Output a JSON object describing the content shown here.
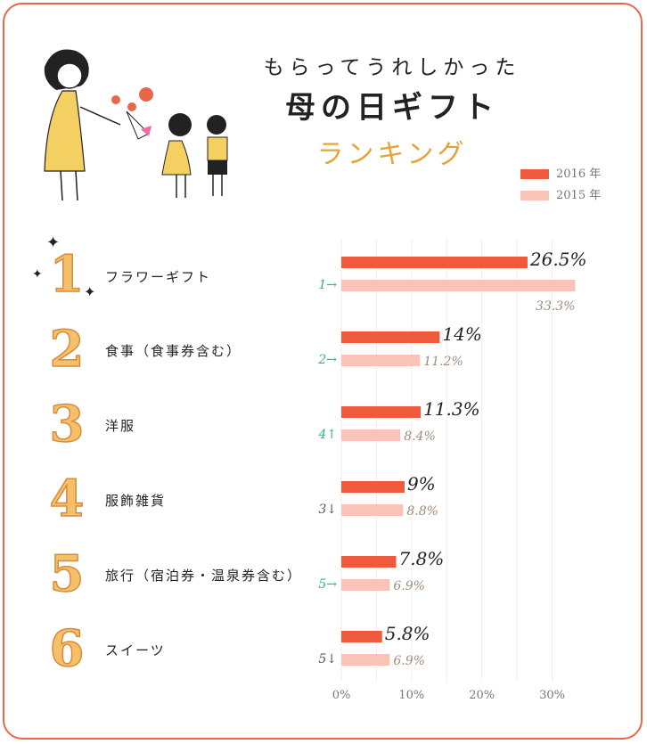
{
  "title_line1": "もらってうれしかった",
  "title_line2": "母の日ギフト",
  "title_line3": "ランキング",
  "colors": {
    "border": "#e9664b",
    "s2016": "#f05a3c",
    "s2015": "#f9c3b6",
    "accent": "#e8a23a",
    "rank_fill": "#f4c06a",
    "up": "#2ab58a"
  },
  "legend": [
    {
      "label": "2016 年",
      "color": "#f05a3c"
    },
    {
      "label": "2015 年",
      "color": "#f9c3b6"
    }
  ],
  "rows": [
    {
      "rank": "1",
      "label": "フラワーギフト",
      "change": "1→",
      "change_kind": "up",
      "v2016": "26.5%",
      "v2015": "33.3%"
    },
    {
      "rank": "2",
      "label": "食事（食事券含む）",
      "change": "2→",
      "change_kind": "up",
      "v2016": "14%",
      "v2015": "11.2%"
    },
    {
      "rank": "3",
      "label": "洋服",
      "change": "4↑",
      "change_kind": "up",
      "v2016": "11.3%",
      "v2015": "8.4%"
    },
    {
      "rank": "4",
      "label": "服飾雑貨",
      "change": "3↓",
      "change_kind": "down",
      "v2016": "9%",
      "v2015": "8.8%"
    },
    {
      "rank": "5",
      "label": "旅行（宿泊券・温泉券含む）",
      "change": "5→",
      "change_kind": "up",
      "v2016": "7.8%",
      "v2015": "6.9%"
    },
    {
      "rank": "6",
      "label": "スイーツ",
      "change": "5↓",
      "change_kind": "down",
      "v2016": "5.8%",
      "v2015": "6.9%"
    }
  ],
  "chart_data": {
    "type": "bar",
    "orientation": "horizontal",
    "categories": [
      "フラワーギフト",
      "食事（食事券含む）",
      "洋服",
      "服飾雑貨",
      "旅行（宿泊券・温泉券含む）",
      "スイーツ"
    ],
    "series": [
      {
        "name": "2016 年",
        "values": [
          26.5,
          14,
          11.3,
          9,
          7.8,
          5.8
        ]
      },
      {
        "name": "2015 年",
        "values": [
          33.3,
          11.2,
          8.4,
          8.8,
          6.9,
          6.9
        ]
      }
    ],
    "xlim": [
      0,
      34.5
    ],
    "xticks": [
      "0%",
      "10%",
      "20%",
      "30%"
    ],
    "xtick_values": [
      0,
      10,
      20,
      30
    ],
    "grid": true,
    "legend_position": "top-right"
  }
}
